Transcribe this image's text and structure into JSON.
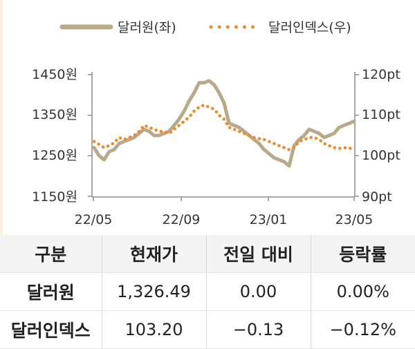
{
  "chart_data": {
    "type": "line",
    "legend": {
      "placement": "top",
      "items": [
        {
          "label": "달러원(좌)",
          "color": "#b9a98b",
          "style": "solid"
        },
        {
          "label": "달러인덱스(우)",
          "color": "#ef8a2c",
          "style": "dotted"
        }
      ]
    },
    "x_ticks": [
      "22/05",
      "22/09",
      "23/01",
      "23/05"
    ],
    "y_left": {
      "ticks": [
        "1450원",
        "1350원",
        "1250원",
        "1150원"
      ],
      "range": [
        1150,
        1450
      ]
    },
    "y_right": {
      "ticks": [
        "120pt",
        "110pt",
        "100pt",
        "90pt"
      ],
      "range": [
        90,
        120
      ]
    },
    "grid": false,
    "series": [
      {
        "name": "달러원(좌)",
        "axis": "left",
        "color": "#b9a98b",
        "x": [
          "2022-05-02",
          "2022-05-09",
          "2022-05-16",
          "2022-05-23",
          "2022-05-30",
          "2022-06-06",
          "2022-06-13",
          "2022-06-20",
          "2022-06-27",
          "2022-07-04",
          "2022-07-11",
          "2022-07-18",
          "2022-07-25",
          "2022-08-01",
          "2022-08-08",
          "2022-08-15",
          "2022-08-22",
          "2022-08-29",
          "2022-09-05",
          "2022-09-12",
          "2022-09-19",
          "2022-09-26",
          "2022-10-03",
          "2022-10-10",
          "2022-10-17",
          "2022-10-24",
          "2022-10-31",
          "2022-11-07",
          "2022-11-14",
          "2022-11-21",
          "2022-11-28",
          "2022-12-05",
          "2022-12-12",
          "2022-12-19",
          "2022-12-26",
          "2023-01-02",
          "2023-01-09",
          "2023-01-16",
          "2023-01-23",
          "2023-01-30",
          "2023-02-06",
          "2023-02-13",
          "2023-02-20",
          "2023-02-27",
          "2023-03-06",
          "2023-03-13",
          "2023-03-20",
          "2023-03-27",
          "2023-04-03",
          "2023-04-10",
          "2023-04-17",
          "2023-04-24",
          "2023-05-01"
        ],
        "y": [
          1270,
          1250,
          1240,
          1260,
          1265,
          1280,
          1285,
          1290,
          1295,
          1305,
          1315,
          1310,
          1300,
          1300,
          1305,
          1310,
          1325,
          1340,
          1360,
          1385,
          1405,
          1430,
          1430,
          1435,
          1425,
          1405,
          1380,
          1330,
          1325,
          1320,
          1310,
          1300,
          1290,
          1280,
          1265,
          1255,
          1245,
          1240,
          1235,
          1225,
          1275,
          1290,
          1300,
          1315,
          1310,
          1305,
          1295,
          1300,
          1305,
          1320,
          1325,
          1330,
          1335
        ]
      },
      {
        "name": "달러인덱스(우)",
        "axis": "right",
        "color": "#ef8a2c",
        "x": [
          "2022-05-02",
          "2022-05-09",
          "2022-05-16",
          "2022-05-23",
          "2022-05-30",
          "2022-06-06",
          "2022-06-13",
          "2022-06-20",
          "2022-06-27",
          "2022-07-04",
          "2022-07-11",
          "2022-07-18",
          "2022-07-25",
          "2022-08-01",
          "2022-08-08",
          "2022-08-15",
          "2022-08-22",
          "2022-08-29",
          "2022-09-05",
          "2022-09-12",
          "2022-09-19",
          "2022-09-26",
          "2022-10-03",
          "2022-10-10",
          "2022-10-17",
          "2022-10-24",
          "2022-10-31",
          "2022-11-07",
          "2022-11-14",
          "2022-11-21",
          "2022-11-28",
          "2022-12-05",
          "2022-12-12",
          "2022-12-19",
          "2022-12-26",
          "2023-01-02",
          "2023-01-09",
          "2023-01-16",
          "2023-01-23",
          "2023-01-30",
          "2023-02-06",
          "2023-02-13",
          "2023-02-20",
          "2023-02-27",
          "2023-03-06",
          "2023-03-13",
          "2023-03-20",
          "2023-03-27",
          "2023-04-03",
          "2023-04-10",
          "2023-04-17",
          "2023-04-24",
          "2023-05-01"
        ],
        "y": [
          103.5,
          102.8,
          102.0,
          102.5,
          103.2,
          104.5,
          104.0,
          104.5,
          105.0,
          106.0,
          107.5,
          107.0,
          106.5,
          106.0,
          106.0,
          105.5,
          106.5,
          107.5,
          108.5,
          109.5,
          111.0,
          112.0,
          112.5,
          112.0,
          111.5,
          110.0,
          109.0,
          107.0,
          106.5,
          106.0,
          105.5,
          105.0,
          104.5,
          104.2,
          104.0,
          103.5,
          103.0,
          102.5,
          102.0,
          101.5,
          102.0,
          103.5,
          104.0,
          104.5,
          104.5,
          104.0,
          103.0,
          102.5,
          102.0,
          101.8,
          102.0,
          101.8,
          102.0
        ]
      }
    ]
  },
  "table": {
    "headers": [
      "구분",
      "현재가",
      "전일 대비",
      "등락률"
    ],
    "rows": [
      [
        "달러원",
        "1,326.49",
        "0.00",
        "0.00%"
      ],
      [
        "달러인덱스",
        "103.20",
        "−0.13",
        "−0.12%"
      ]
    ]
  }
}
